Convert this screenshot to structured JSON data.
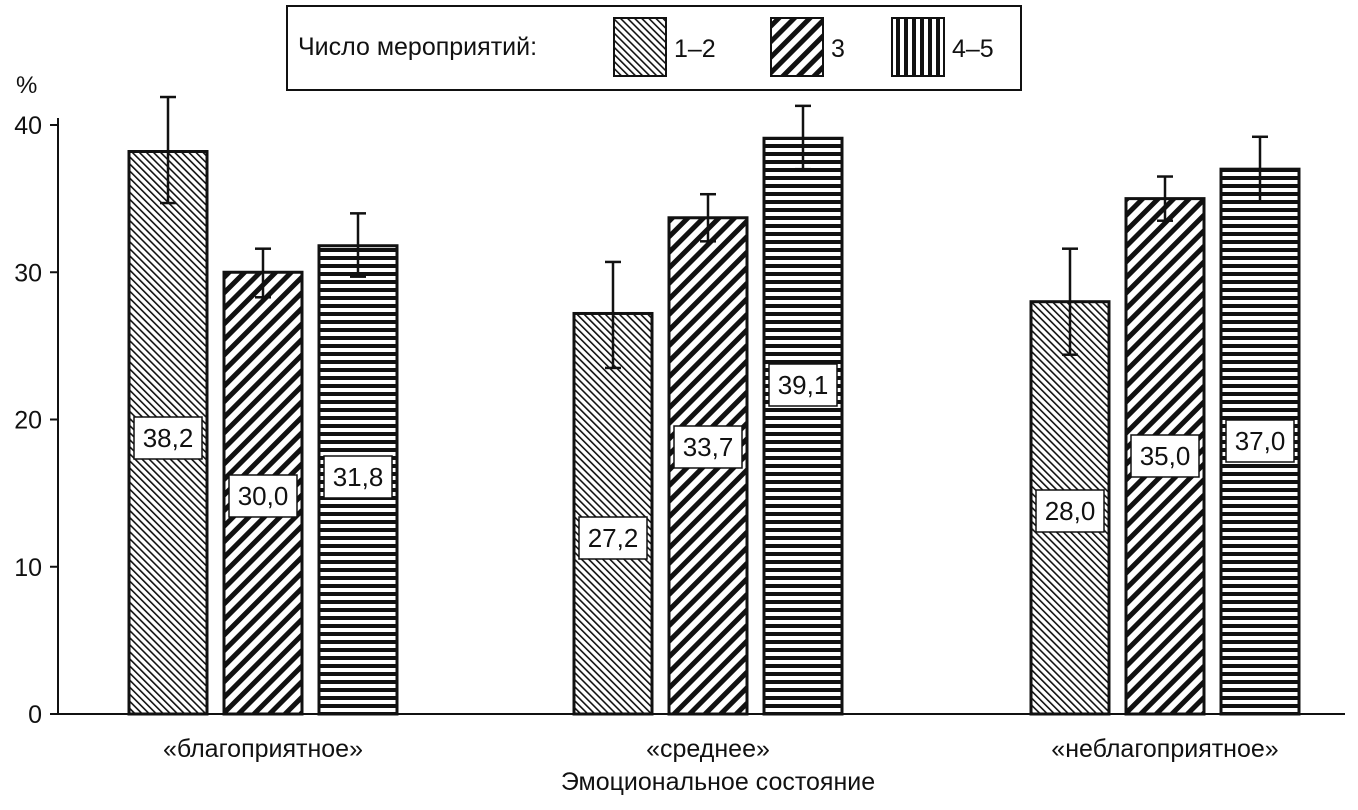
{
  "chart_data": {
    "type": "bar",
    "title": "",
    "xlabel": "Эмоциональное состояние",
    "ylabel": "%",
    "ylim": [
      0,
      40
    ],
    "yticks": [
      0,
      10,
      20,
      30,
      40
    ],
    "categories": [
      "«благоприятное»",
      "«среднее»",
      "«неблагоприятное»"
    ],
    "legend": {
      "title": "Число мероприятий:",
      "position": "top-center"
    },
    "series": [
      {
        "name": "1–2",
        "pattern": "fine-diagonal",
        "values": [
          38.2,
          27.2,
          28.0
        ],
        "labels": [
          "38,2",
          "27,2",
          "28,0"
        ],
        "error_low": [
          34.7,
          23.5,
          24.4
        ],
        "error_high": [
          41.9,
          30.7,
          31.6
        ]
      },
      {
        "name": "3",
        "pattern": "bold-diagonal",
        "values": [
          30.0,
          33.7,
          35.0
        ],
        "labels": [
          "30,0",
          "33,7",
          "35,0"
        ],
        "error_low": [
          28.3,
          32.1,
          33.5
        ],
        "error_high": [
          31.6,
          35.3,
          36.5
        ]
      },
      {
        "name": "4–5",
        "pattern": "horizontal-lines",
        "values": [
          31.8,
          39.1,
          37.0
        ],
        "labels": [
          "31,8",
          "39,1",
          "37,0"
        ],
        "error_low": [
          29.7,
          37.0,
          34.8
        ],
        "error_high": [
          34.0,
          41.3,
          39.2
        ]
      }
    ],
    "grid": false,
    "colors": {
      "ink": "#111111",
      "background": "#ffffff"
    }
  }
}
